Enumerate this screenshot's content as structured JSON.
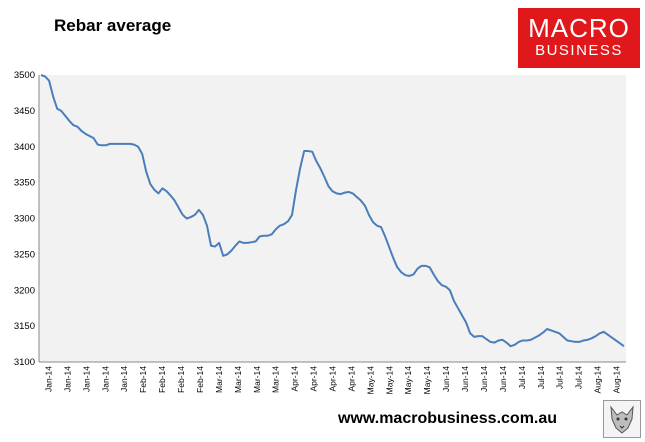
{
  "colors": {
    "line": "#4a7ebb",
    "plot_bg": "#f2f2f2",
    "brand_red": "#e0181b"
  },
  "branding": {
    "logo_line1": "MACRO",
    "logo_line2": "BUSINESS",
    "website": "www.macrobusiness.com.au",
    "corner_icon": "wolf-icon"
  },
  "chart_data": {
    "type": "line",
    "title": "Rebar average",
    "xlabel": "",
    "ylabel": "",
    "ylim": [
      3100,
      3500
    ],
    "yticks": [
      3100,
      3150,
      3200,
      3250,
      3300,
      3350,
      3400,
      3450,
      3500
    ],
    "grid": false,
    "legend": "none",
    "x_tick_labels": [
      "Jan-14",
      "Jan-14",
      "Jan-14",
      "Jan-14",
      "Jan-14",
      "Feb-14",
      "Feb-14",
      "Feb-14",
      "Feb-14",
      "Mar-14",
      "Mar-14",
      "Mar-14",
      "Mar-14",
      "Apr-14",
      "Apr-14",
      "Apr-14",
      "Apr-14",
      "May-14",
      "May-14",
      "May-14",
      "May-14",
      "Jun-14",
      "Jun-14",
      "Jun-14",
      "Jun-14",
      "Jul-14",
      "Jul-14",
      "Jul-14",
      "Jul-14",
      "Aug-14",
      "Aug-14"
    ],
    "series": [
      {
        "values": [
          3500,
          3498,
          3492,
          3470,
          3453,
          3450,
          3443,
          3436,
          3430,
          3428,
          3422,
          3418,
          3415,
          3412,
          3403,
          3402,
          3402,
          3404,
          3404,
          3404,
          3404,
          3404,
          3404,
          3403,
          3400,
          3390,
          3365,
          3348,
          3340,
          3335,
          3342,
          3338,
          3332,
          3325,
          3315,
          3305,
          3300,
          3302,
          3305,
          3312,
          3305,
          3290,
          3262,
          3261,
          3266,
          3248,
          3250,
          3255,
          3262,
          3268,
          3266,
          3266,
          3267,
          3268,
          3275,
          3276,
          3276,
          3278,
          3285,
          3290,
          3292,
          3296,
          3305,
          3340,
          3370,
          3394,
          3394,
          3393,
          3380,
          3370,
          3358,
          3345,
          3338,
          3335,
          3334,
          3336,
          3337,
          3335,
          3330,
          3325,
          3318,
          3305,
          3295,
          3290,
          3288,
          3275,
          3260,
          3245,
          3232,
          3225,
          3221,
          3220,
          3222,
          3230,
          3234,
          3234,
          3232,
          3222,
          3213,
          3207,
          3205,
          3200,
          3185,
          3175,
          3165,
          3155,
          3140,
          3135,
          3136,
          3136,
          3132,
          3128,
          3127,
          3130,
          3131,
          3127,
          3122,
          3124,
          3128,
          3130,
          3130,
          3131,
          3134,
          3137,
          3141,
          3146,
          3144,
          3142,
          3140,
          3135,
          3130,
          3129,
          3128,
          3128,
          3130,
          3131,
          3133,
          3136,
          3140,
          3142,
          3138,
          3134,
          3130,
          3126,
          3122
        ]
      }
    ]
  }
}
